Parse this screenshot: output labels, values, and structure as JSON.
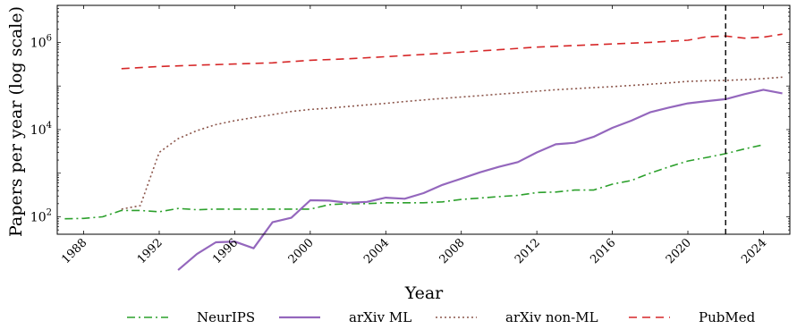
{
  "chart_data": {
    "type": "line",
    "xlabel": "Year",
    "ylabel": "Papers per year (log scale)",
    "xlim": [
      1986.6,
      2025.4
    ],
    "ylim": [
      1.6,
      6.85
    ],
    "y_scale": "log",
    "grid": false,
    "legend_placement": "bottom",
    "x_ticks": [
      1988,
      1992,
      1996,
      2000,
      2004,
      2008,
      2012,
      2016,
      2020,
      2024
    ],
    "x_tick_labels": [
      "1988",
      "1992",
      "1996",
      "2000",
      "2004",
      "2008",
      "2012",
      "2016",
      "2020",
      "2024"
    ],
    "y_ticks": [
      {
        "exp": 2,
        "base": "10",
        "power": "2"
      },
      {
        "exp": 4,
        "base": "10",
        "power": "4"
      },
      {
        "exp": 6,
        "base": "10",
        "power": "6"
      }
    ],
    "vertical_marker_x": 2022,
    "series": [
      {
        "name": "NeurIPS",
        "color": "#2ca02c",
        "dash": "9,4,2,4",
        "x": [
          1987,
          1988,
          1989,
          1990,
          1991,
          1992,
          1993,
          1994,
          1995,
          1996,
          1997,
          1998,
          1999,
          2000,
          2001,
          2002,
          2003,
          2004,
          2005,
          2006,
          2007,
          2008,
          2009,
          2010,
          2011,
          2012,
          2013,
          2014,
          2015,
          2016,
          2017,
          2018,
          2019,
          2020,
          2021,
          2022,
          2023,
          2024
        ],
        "y": [
          90,
          92,
          100,
          140,
          140,
          130,
          155,
          145,
          150,
          150,
          150,
          150,
          150,
          150,
          190,
          200,
          200,
          210,
          210,
          210,
          220,
          250,
          270,
          290,
          310,
          360,
          370,
          410,
          410,
          560,
          680,
          1000,
          1400,
          1900,
          2300,
          2800,
          3600,
          4500
        ]
      },
      {
        "name": "arXiv ML",
        "color": "#9467bd",
        "dash": "",
        "x": [
          1993,
          1994,
          1995,
          1996,
          1997,
          1998,
          1999,
          2000,
          2001,
          2002,
          2003,
          2004,
          2005,
          2006,
          2007,
          2008,
          2009,
          2010,
          2011,
          2012,
          2013,
          2014,
          2015,
          2016,
          2017,
          2018,
          2019,
          2020,
          2021,
          2022,
          2023,
          2024,
          2025
        ],
        "y": [
          6,
          14,
          26,
          27,
          19,
          75,
          95,
          240,
          235,
          210,
          220,
          275,
          260,
          350,
          540,
          750,
          1050,
          1400,
          1800,
          3000,
          4600,
          5000,
          6800,
          11000,
          16000,
          25000,
          32000,
          40000,
          45000,
          50000,
          65000,
          82000,
          68000
        ]
      },
      {
        "name": "arXiv non-ML",
        "color": "#8c564b",
        "dash": "2,3",
        "x": [
          1990,
          1991,
          1992,
          1993,
          1994,
          1995,
          1996,
          1997,
          1998,
          1999,
          2000,
          2001,
          2002,
          2003,
          2004,
          2005,
          2006,
          2007,
          2008,
          2009,
          2010,
          2011,
          2012,
          2013,
          2014,
          2015,
          2016,
          2017,
          2018,
          2019,
          2020,
          2021,
          2022,
          2023,
          2024,
          2025
        ],
        "y": [
          150,
          180,
          3000,
          6200,
          9500,
          13000,
          16000,
          19000,
          22000,
          26000,
          29000,
          31000,
          34000,
          37000,
          40000,
          44000,
          48000,
          52000,
          56000,
          60000,
          65000,
          70000,
          76000,
          82000,
          87000,
          92000,
          97000,
          103000,
          110000,
          118000,
          128000,
          132000,
          135000,
          140000,
          148000,
          160000
        ]
      },
      {
        "name": "PubMed",
        "color": "#d62728",
        "dash": "9,6",
        "x": [
          1990,
          1992,
          1994,
          1996,
          1998,
          2000,
          2002,
          2004,
          2006,
          2008,
          2010,
          2012,
          2014,
          2016,
          2018,
          2020,
          2021,
          2022,
          2023,
          2024,
          2025
        ],
        "y": [
          250000,
          280000,
          300000,
          320000,
          340000,
          390000,
          420000,
          470000,
          530000,
          600000,
          680000,
          780000,
          850000,
          920000,
          1000000,
          1120000,
          1350000,
          1400000,
          1250000,
          1320000,
          1550000
        ]
      }
    ]
  }
}
